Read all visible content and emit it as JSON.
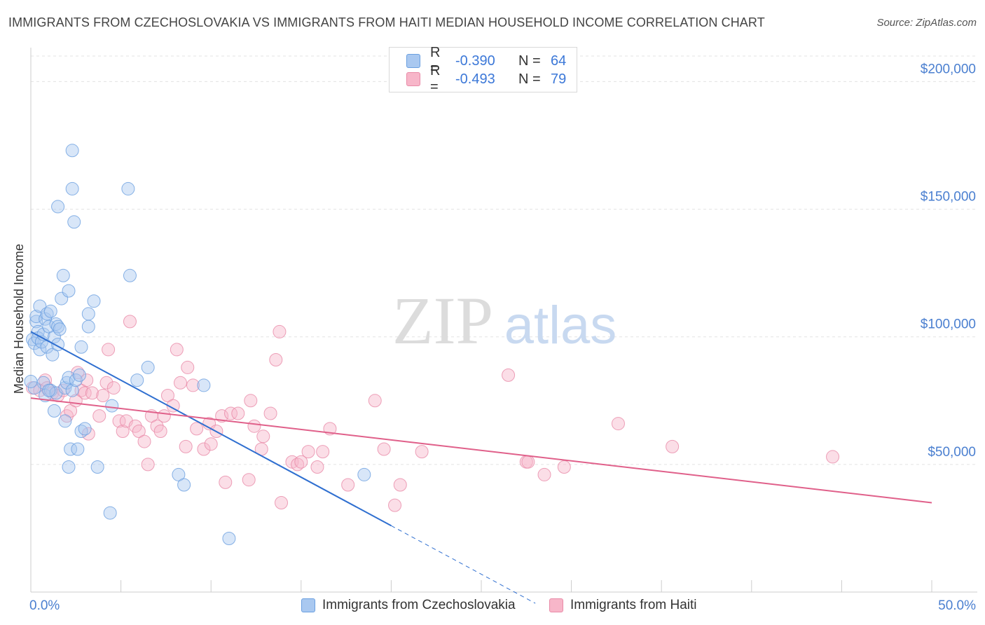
{
  "header": {
    "title": "IMMIGRANTS FROM CZECHOSLOVAKIA VS IMMIGRANTS FROM HAITI MEDIAN HOUSEHOLD INCOME CORRELATION CHART",
    "source": "Source: ZipAtlas.com"
  },
  "watermark": {
    "zip": "ZIP",
    "atlas": "atlas"
  },
  "legend": {
    "r_label": "R =",
    "n_label": "N =",
    "series1": {
      "r": "-0.390",
      "n": "64"
    },
    "series2": {
      "r": "-0.493",
      "n": "79"
    }
  },
  "colors": {
    "series1_fill": "#a9c8f0",
    "series1_stroke": "#6a9fe0",
    "series1_line": "#2f6fd0",
    "series2_fill": "#f7b6c9",
    "series2_stroke": "#e98aa7",
    "series2_line": "#e0608a",
    "tick_text": "#4a7fd0",
    "grid": "#e3e3e3"
  },
  "chart_data": {
    "type": "scatter",
    "title": "IMMIGRANTS FROM CZECHOSLOVAKIA VS IMMIGRANTS FROM HAITI MEDIAN HOUSEHOLD INCOME CORRELATION CHART",
    "xlabel": "",
    "ylabel": "Median Household Income",
    "xlim": [
      0,
      50
    ],
    "ylim": [
      0,
      210000
    ],
    "x_tick_labels": [
      "0.0%",
      "50.0%"
    ],
    "y_ticks": [
      50000,
      100000,
      150000,
      200000
    ],
    "y_tick_labels": [
      "$50,000",
      "$100,000",
      "$150,000",
      "$200,000"
    ],
    "grid": "horizontal dashed",
    "legend_position": "top-center",
    "series": [
      {
        "name": "Immigrants from Czechoslovakia",
        "r": -0.39,
        "n": 64,
        "trend": {
          "x0": 0,
          "y0": 102000,
          "x1": 20,
          "y1": 26000,
          "dashed_to_x": 28
        },
        "points": [
          [
            0.1,
            99000
          ],
          [
            0.2,
            97500
          ],
          [
            0.3,
            106000
          ],
          [
            0.3,
            108000
          ],
          [
            0.4,
            102000
          ],
          [
            0.4,
            99500
          ],
          [
            0.5,
            95000
          ],
          [
            0.5,
            112000
          ],
          [
            0.6,
            98000
          ],
          [
            0.7,
            101000
          ],
          [
            0.8,
            107000
          ],
          [
            0.9,
            109000
          ],
          [
            0.9,
            96000
          ],
          [
            1.0,
            104000
          ],
          [
            1.1,
            110000
          ],
          [
            1.2,
            93000
          ],
          [
            1.3,
            100000
          ],
          [
            1.4,
            105000
          ],
          [
            1.5,
            104000
          ],
          [
            1.5,
            97000
          ],
          [
            1.6,
            103000
          ],
          [
            1.7,
            115000
          ],
          [
            1.8,
            124000
          ],
          [
            2.1,
            118000
          ],
          [
            2.3,
            158000
          ],
          [
            2.4,
            145000
          ],
          [
            1.5,
            151000
          ],
          [
            2.3,
            173000
          ],
          [
            3.5,
            114000
          ],
          [
            3.2,
            109000
          ],
          [
            3.2,
            104000
          ],
          [
            2.8,
            96000
          ],
          [
            0.7,
            82000
          ],
          [
            0.8,
            77000
          ],
          [
            1.1,
            79000
          ],
          [
            1.4,
            78000
          ],
          [
            1.9,
            80000
          ],
          [
            2.0,
            82000
          ],
          [
            2.1,
            84000
          ],
          [
            2.3,
            79000
          ],
          [
            2.5,
            83000
          ],
          [
            2.7,
            85000
          ],
          [
            1.3,
            71000
          ],
          [
            1.9,
            67000
          ],
          [
            2.8,
            63000
          ],
          [
            2.2,
            56000
          ],
          [
            2.6,
            56000
          ],
          [
            3.0,
            64000
          ],
          [
            2.1,
            49000
          ],
          [
            3.7,
            49000
          ],
          [
            4.5,
            73000
          ],
          [
            5.5,
            124000
          ],
          [
            5.4,
            158000
          ],
          [
            5.9,
            83000
          ],
          [
            6.5,
            88000
          ],
          [
            8.2,
            46000
          ],
          [
            8.5,
            42000
          ],
          [
            9.6,
            81000
          ],
          [
            4.4,
            31000
          ],
          [
            11.0,
            21000
          ],
          [
            18.5,
            46000
          ],
          [
            0.2,
            80000
          ],
          [
            0.0,
            82500
          ],
          [
            1.0,
            79000
          ]
        ]
      },
      {
        "name": "Immigrants from Haiti",
        "r": -0.493,
        "n": 79,
        "trend": {
          "x0": 0,
          "y0": 76000,
          "x1": 50,
          "y1": 35000
        },
        "points": [
          [
            0.1,
            80000
          ],
          [
            0.5,
            79000
          ],
          [
            0.8,
            83000
          ],
          [
            0.9,
            80000
          ],
          [
            1.2,
            78000
          ],
          [
            1.5,
            77000
          ],
          [
            1.8,
            79000
          ],
          [
            2.0,
            69000
          ],
          [
            2.2,
            71000
          ],
          [
            2.5,
            75000
          ],
          [
            2.6,
            86000
          ],
          [
            2.8,
            79000
          ],
          [
            3.0,
            78000
          ],
          [
            3.2,
            62000
          ],
          [
            3.4,
            78000
          ],
          [
            3.8,
            69000
          ],
          [
            4.0,
            77000
          ],
          [
            4.2,
            82000
          ],
          [
            4.3,
            95000
          ],
          [
            4.6,
            80000
          ],
          [
            4.9,
            67000
          ],
          [
            5.1,
            63000
          ],
          [
            5.3,
            67000
          ],
          [
            5.5,
            106000
          ],
          [
            5.8,
            65000
          ],
          [
            6.0,
            63000
          ],
          [
            6.3,
            59000
          ],
          [
            6.5,
            50000
          ],
          [
            6.7,
            69000
          ],
          [
            7.0,
            65000
          ],
          [
            7.2,
            63000
          ],
          [
            7.4,
            69000
          ],
          [
            7.6,
            77000
          ],
          [
            7.9,
            73000
          ],
          [
            8.1,
            95000
          ],
          [
            8.3,
            82000
          ],
          [
            8.6,
            57000
          ],
          [
            8.7,
            88000
          ],
          [
            9.0,
            81000
          ],
          [
            9.2,
            64000
          ],
          [
            9.6,
            56000
          ],
          [
            9.9,
            66000
          ],
          [
            10.0,
            58000
          ],
          [
            10.3,
            63000
          ],
          [
            10.6,
            69000
          ],
          [
            10.8,
            43000
          ],
          [
            11.1,
            70000
          ],
          [
            11.5,
            70000
          ],
          [
            12.1,
            44000
          ],
          [
            12.2,
            75000
          ],
          [
            12.4,
            65000
          ],
          [
            12.8,
            56000
          ],
          [
            12.9,
            61000
          ],
          [
            13.3,
            70000
          ],
          [
            13.6,
            91000
          ],
          [
            13.8,
            102000
          ],
          [
            13.9,
            35000
          ],
          [
            14.5,
            51000
          ],
          [
            14.8,
            50000
          ],
          [
            15.0,
            51000
          ],
          [
            15.4,
            55000
          ],
          [
            15.9,
            49000
          ],
          [
            16.2,
            55000
          ],
          [
            16.6,
            64000
          ],
          [
            17.6,
            42000
          ],
          [
            19.1,
            75000
          ],
          [
            19.6,
            56000
          ],
          [
            20.2,
            34000
          ],
          [
            20.5,
            42000
          ],
          [
            21.7,
            55000
          ],
          [
            26.5,
            85000
          ],
          [
            27.5,
            51000
          ],
          [
            27.6,
            51000
          ],
          [
            28.5,
            46000
          ],
          [
            29.6,
            49000
          ],
          [
            32.6,
            66000
          ],
          [
            35.6,
            57000
          ],
          [
            44.5,
            53000
          ],
          [
            3.1,
            83000
          ]
        ]
      }
    ]
  },
  "bottom_legend": {
    "series1_label": "Immigrants from Czechoslovakia",
    "series2_label": "Immigrants from Haiti"
  }
}
